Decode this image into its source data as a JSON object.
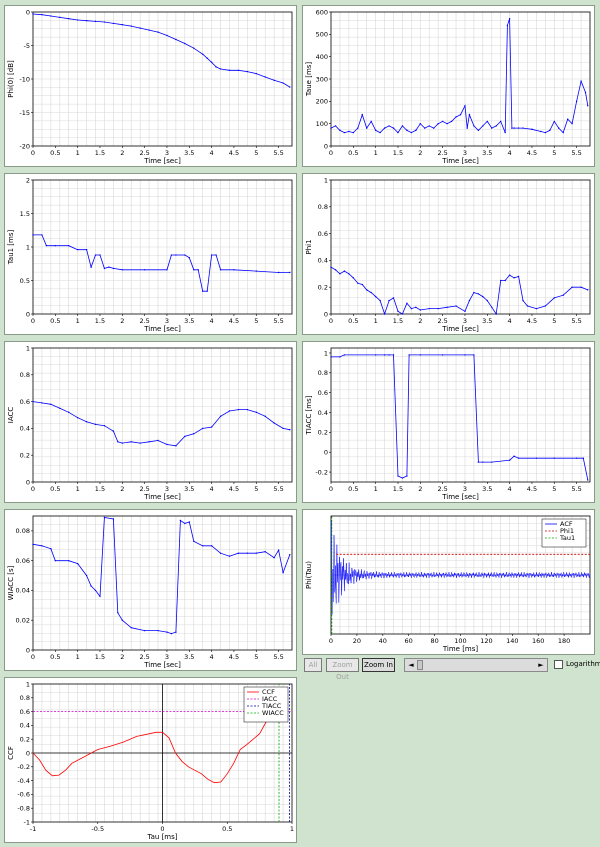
{
  "charts": [
    {
      "id": "phi0",
      "type": "line",
      "xlabel": "Time [sec]",
      "ylabel": "Phi(0) [dB]",
      "xlim": [
        0,
        5.8
      ],
      "ylim": [
        -20,
        0
      ],
      "xticks": [
        0,
        0.5,
        1,
        1.5,
        2,
        2.5,
        3,
        3.5,
        4,
        4.5,
        5,
        5.5
      ],
      "yticks": [
        0,
        -5,
        -10,
        -15,
        -20
      ],
      "series": [
        {
          "color": "#0000ff",
          "x": [
            0,
            0.2,
            0.4,
            0.6,
            0.8,
            1.0,
            1.2,
            1.4,
            1.6,
            1.8,
            2.0,
            2.2,
            2.4,
            2.6,
            2.8,
            3.0,
            3.2,
            3.4,
            3.6,
            3.8,
            3.9,
            4.0,
            4.1,
            4.2,
            4.4,
            4.6,
            4.8,
            5.0,
            5.2,
            5.4,
            5.6,
            5.75
          ],
          "y": [
            -0.3,
            -0.4,
            -0.6,
            -0.8,
            -1.0,
            -1.2,
            -1.3,
            -1.4,
            -1.5,
            -1.7,
            -1.9,
            -2.1,
            -2.4,
            -2.7,
            -3.0,
            -3.5,
            -4.1,
            -4.7,
            -5.4,
            -6.3,
            -6.9,
            -7.5,
            -8.2,
            -8.5,
            -8.7,
            -8.7,
            -8.9,
            -9.2,
            -9.7,
            -10.2,
            -10.6,
            -11.2
          ]
        }
      ]
    },
    {
      "id": "taue",
      "type": "line",
      "xlabel": "Time [sec]",
      "ylabel": "Taue [ms]",
      "xlim": [
        0,
        5.8
      ],
      "ylim": [
        0,
        600
      ],
      "xticks": [
        0,
        0.5,
        1,
        1.5,
        2,
        2.5,
        3,
        3.5,
        4,
        4.5,
        5,
        5.5
      ],
      "yticks": [
        0,
        100,
        200,
        300,
        400,
        500,
        600
      ],
      "series": [
        {
          "color": "#0000ff",
          "x": [
            0,
            0.1,
            0.2,
            0.3,
            0.4,
            0.5,
            0.6,
            0.7,
            0.8,
            0.9,
            1.0,
            1.1,
            1.2,
            1.3,
            1.4,
            1.5,
            1.6,
            1.7,
            1.8,
            1.9,
            2.0,
            2.1,
            2.2,
            2.3,
            2.4,
            2.5,
            2.6,
            2.7,
            2.8,
            2.9,
            3.0,
            3.05,
            3.1,
            3.2,
            3.3,
            3.4,
            3.5,
            3.6,
            3.7,
            3.8,
            3.9,
            3.95,
            4.0,
            4.05,
            4.1,
            4.2,
            4.3,
            4.5,
            4.7,
            4.8,
            4.9,
            5.0,
            5.1,
            5.2,
            5.3,
            5.4,
            5.5,
            5.6,
            5.7,
            5.75
          ],
          "y": [
            80,
            90,
            70,
            60,
            65,
            60,
            80,
            140,
            80,
            110,
            70,
            60,
            80,
            90,
            80,
            60,
            90,
            70,
            60,
            70,
            100,
            80,
            90,
            80,
            100,
            110,
            100,
            110,
            130,
            140,
            180,
            80,
            140,
            90,
            70,
            90,
            110,
            80,
            90,
            110,
            60,
            540,
            570,
            80,
            80,
            80,
            80,
            75,
            65,
            60,
            70,
            110,
            80,
            60,
            120,
            100,
            200,
            290,
            240,
            180
          ]
        }
      ]
    },
    {
      "id": "tau1",
      "type": "line",
      "xlabel": "Time [sec]",
      "ylabel": "Tau1 [ms]",
      "xlim": [
        0,
        5.8
      ],
      "ylim": [
        0,
        2
      ],
      "xticks": [
        0,
        0.5,
        1,
        1.5,
        2,
        2.5,
        3,
        3.5,
        4,
        4.5,
        5,
        5.5
      ],
      "yticks": [
        0,
        0.5,
        1,
        1.5,
        2
      ],
      "series": [
        {
          "color": "#0000ff",
          "x": [
            0,
            0.2,
            0.3,
            0.5,
            0.8,
            1.0,
            1.2,
            1.3,
            1.4,
            1.5,
            1.6,
            1.7,
            1.8,
            2.0,
            2.5,
            3.0,
            3.1,
            3.2,
            3.4,
            3.5,
            3.6,
            3.7,
            3.8,
            3.9,
            4.0,
            4.1,
            4.2,
            4.5,
            5.0,
            5.5,
            5.75
          ],
          "y": [
            1.18,
            1.18,
            1.02,
            1.02,
            1.02,
            0.96,
            0.96,
            0.7,
            0.88,
            0.88,
            0.68,
            0.7,
            0.68,
            0.66,
            0.66,
            0.66,
            0.88,
            0.88,
            0.88,
            0.84,
            0.66,
            0.66,
            0.34,
            0.34,
            0.88,
            0.88,
            0.66,
            0.66,
            0.64,
            0.62,
            0.62
          ]
        }
      ]
    },
    {
      "id": "phi1",
      "type": "line",
      "xlabel": "Time [sec]",
      "ylabel": "Phi1",
      "xlim": [
        0,
        5.8
      ],
      "ylim": [
        0,
        1
      ],
      "xticks": [
        0,
        0.5,
        1,
        1.5,
        2,
        2.5,
        3,
        3.5,
        4,
        4.5,
        5,
        5.5
      ],
      "yticks": [
        0,
        0.2,
        0.4,
        0.6,
        0.8,
        1
      ],
      "series": [
        {
          "color": "#0000ff",
          "x": [
            0,
            0.1,
            0.2,
            0.3,
            0.4,
            0.5,
            0.6,
            0.7,
            0.8,
            0.9,
            1.0,
            1.1,
            1.2,
            1.3,
            1.4,
            1.5,
            1.6,
            1.7,
            1.8,
            1.9,
            2.0,
            2.2,
            2.4,
            2.6,
            2.8,
            3.0,
            3.1,
            3.2,
            3.3,
            3.4,
            3.5,
            3.6,
            3.7,
            3.8,
            3.9,
            4.0,
            4.1,
            4.2,
            4.3,
            4.4,
            4.6,
            4.8,
            5.0,
            5.2,
            5.4,
            5.6,
            5.75
          ],
          "y": [
            0.35,
            0.33,
            0.3,
            0.32,
            0.3,
            0.27,
            0.23,
            0.22,
            0.18,
            0.16,
            0.13,
            0.1,
            0.0,
            0.1,
            0.12,
            0.02,
            0.0,
            0.08,
            0.04,
            0.05,
            0.03,
            0.04,
            0.04,
            0.05,
            0.06,
            0.02,
            0.1,
            0.16,
            0.15,
            0.13,
            0.1,
            0.05,
            0.0,
            0.25,
            0.25,
            0.29,
            0.27,
            0.28,
            0.1,
            0.06,
            0.04,
            0.06,
            0.12,
            0.14,
            0.2,
            0.2,
            0.18
          ]
        }
      ]
    },
    {
      "id": "iacc",
      "type": "line",
      "xlabel": "Time [sec]",
      "ylabel": "IACC",
      "xlim": [
        0,
        5.8
      ],
      "ylim": [
        0,
        1
      ],
      "xticks": [
        0,
        0.5,
        1,
        1.5,
        2,
        2.5,
        3,
        3.5,
        4,
        4.5,
        5,
        5.5
      ],
      "yticks": [
        0,
        0.2,
        0.4,
        0.6,
        0.8,
        1
      ],
      "series": [
        {
          "color": "#0000ff",
          "x": [
            0,
            0.2,
            0.4,
            0.6,
            0.8,
            1.0,
            1.2,
            1.4,
            1.6,
            1.8,
            1.9,
            2.0,
            2.2,
            2.4,
            2.6,
            2.8,
            3.0,
            3.2,
            3.4,
            3.6,
            3.8,
            4.0,
            4.2,
            4.4,
            4.6,
            4.8,
            5.0,
            5.2,
            5.4,
            5.6,
            5.75
          ],
          "y": [
            0.6,
            0.59,
            0.58,
            0.55,
            0.52,
            0.48,
            0.45,
            0.43,
            0.42,
            0.38,
            0.3,
            0.29,
            0.3,
            0.29,
            0.3,
            0.31,
            0.28,
            0.27,
            0.34,
            0.36,
            0.4,
            0.41,
            0.49,
            0.53,
            0.54,
            0.54,
            0.52,
            0.49,
            0.44,
            0.4,
            0.39
          ]
        }
      ]
    },
    {
      "id": "tiacc",
      "type": "line",
      "xlabel": "Time [sec]",
      "ylabel": "TIACC [ms]",
      "xlim": [
        0,
        5.8
      ],
      "ylim": [
        -0.3,
        1.05
      ],
      "xticks": [
        0,
        0.5,
        1,
        1.5,
        2,
        2.5,
        3,
        3.5,
        4,
        4.5,
        5,
        5.5
      ],
      "yticks": [
        -0.2,
        0,
        0.2,
        0.4,
        0.6,
        0.8,
        1
      ],
      "series": [
        {
          "color": "#0000ff",
          "x": [
            0,
            0.2,
            0.3,
            1.0,
            1.2,
            1.3,
            1.4,
            1.5,
            1.6,
            1.7,
            1.75,
            2.0,
            2.5,
            3.0,
            3.2,
            3.3,
            3.4,
            3.6,
            4.0,
            4.1,
            4.2,
            4.6,
            5.0,
            5.5,
            5.65,
            5.75
          ],
          "y": [
            0.96,
            0.96,
            0.98,
            0.98,
            0.98,
            0.98,
            0.98,
            -0.24,
            -0.26,
            -0.24,
            0.98,
            0.98,
            0.98,
            0.98,
            0.98,
            -0.1,
            -0.1,
            -0.1,
            -0.08,
            -0.04,
            -0.06,
            -0.06,
            -0.06,
            -0.06,
            -0.06,
            -0.28
          ]
        }
      ]
    },
    {
      "id": "wiacc",
      "type": "line",
      "xlabel": "Time [sec]",
      "ylabel": "WIACC [s]",
      "xlim": [
        0,
        5.8
      ],
      "ylim": [
        0,
        0.09
      ],
      "xticks": [
        0,
        0.5,
        1,
        1.5,
        2,
        2.5,
        3,
        3.5,
        4,
        4.5,
        5,
        5.5
      ],
      "yticks": [
        0,
        0.02,
        0.04,
        0.06,
        0.08
      ],
      "series": [
        {
          "color": "#0000ff",
          "x": [
            0,
            0.2,
            0.4,
            0.5,
            0.8,
            1.0,
            1.2,
            1.3,
            1.4,
            1.5,
            1.6,
            1.8,
            1.9,
            2.0,
            2.2,
            2.5,
            2.8,
            3.0,
            3.1,
            3.2,
            3.3,
            3.4,
            3.5,
            3.6,
            3.8,
            4.0,
            4.2,
            4.4,
            4.6,
            4.8,
            5.0,
            5.2,
            5.4,
            5.5,
            5.6,
            5.75
          ],
          "y": [
            0.071,
            0.07,
            0.068,
            0.06,
            0.06,
            0.058,
            0.05,
            0.043,
            0.04,
            0.036,
            0.089,
            0.088,
            0.025,
            0.02,
            0.015,
            0.013,
            0.013,
            0.012,
            0.011,
            0.012,
            0.087,
            0.085,
            0.086,
            0.073,
            0.07,
            0.07,
            0.065,
            0.063,
            0.065,
            0.065,
            0.065,
            0.066,
            0.062,
            0.067,
            0.052,
            0.064
          ]
        }
      ]
    },
    {
      "id": "acf",
      "type": "line",
      "xlabel": "Time [ms]",
      "ylabel": "Phi(Tau)",
      "xlim": [
        0,
        200
      ],
      "ylim": [
        -1,
        1
      ],
      "xticks": [
        0,
        20,
        40,
        60,
        80,
        100,
        120,
        140,
        160,
        180
      ],
      "yticks": [],
      "legend": [
        "ACF",
        "Phi1",
        "Tau1"
      ],
      "series": [
        {
          "name": "ACF",
          "color": "#0000ff",
          "style": "solid",
          "kind": "decay"
        },
        {
          "name": "Phi1",
          "color": "#cc0000",
          "style": "dash",
          "x": [
            4,
            200
          ],
          "y": [
            0.35,
            0.35
          ]
        },
        {
          "name": "Tau1",
          "color": "#00aa00",
          "style": "dash",
          "x": [
            0.6,
            0.6
          ],
          "y": [
            -1,
            1
          ]
        }
      ]
    },
    {
      "id": "ccf",
      "type": "line",
      "xlabel": "Tau [ms]",
      "ylabel": "CCF",
      "xlim": [
        -1,
        1
      ],
      "ylim": [
        -1,
        1
      ],
      "xticks": [
        -1,
        -0.5,
        0,
        0.5,
        1
      ],
      "yticks": [
        -1,
        -0.8,
        -0.6,
        -0.4,
        -0.2,
        0,
        0.2,
        0.4,
        0.6,
        0.8,
        1
      ],
      "legend": [
        "CCF",
        "IACC",
        "TIACC",
        "WIACC"
      ],
      "series": [
        {
          "name": "CCF",
          "color": "#ff0000",
          "style": "solid",
          "x": [
            -1,
            -0.95,
            -0.9,
            -0.85,
            -0.8,
            -0.75,
            -0.7,
            -0.6,
            -0.5,
            -0.4,
            -0.3,
            -0.2,
            -0.1,
            -0.05,
            0,
            0.05,
            0.1,
            0.15,
            0.2,
            0.25,
            0.3,
            0.35,
            0.4,
            0.45,
            0.5,
            0.55,
            0.6,
            0.65,
            0.7,
            0.75,
            0.8,
            0.85,
            0.9
          ],
          "y": [
            0.0,
            -0.1,
            -0.25,
            -0.33,
            -0.32,
            -0.25,
            -0.15,
            -0.05,
            0.05,
            0.1,
            0.16,
            0.24,
            0.28,
            0.3,
            0.3,
            0.22,
            0.0,
            -0.12,
            -0.2,
            -0.25,
            -0.3,
            -0.38,
            -0.43,
            -0.42,
            -0.3,
            -0.15,
            0.05,
            0.12,
            0.2,
            0.28,
            0.45,
            0.55,
            0.62
          ]
        },
        {
          "name": "IACC",
          "color": "#cc00cc",
          "style": "dash",
          "x": [
            -1,
            1
          ],
          "y": [
            0.6,
            0.6
          ]
        },
        {
          "name": "TIACC",
          "color": "#000099",
          "style": "dash",
          "x": [
            0.98,
            0.98
          ],
          "y": [
            -1,
            1
          ]
        },
        {
          "name": "WIACC",
          "color": "#00aa00",
          "style": "dash",
          "x": [
            0.9,
            0.9
          ],
          "y": [
            -1,
            1
          ]
        }
      ]
    }
  ],
  "controls": {
    "all": "All",
    "zoom_out": "Zoom Out",
    "zoom_in": "Zoom In",
    "scroll_left": "◄",
    "scroll_right": "►",
    "logarithm": "Logarithm"
  }
}
